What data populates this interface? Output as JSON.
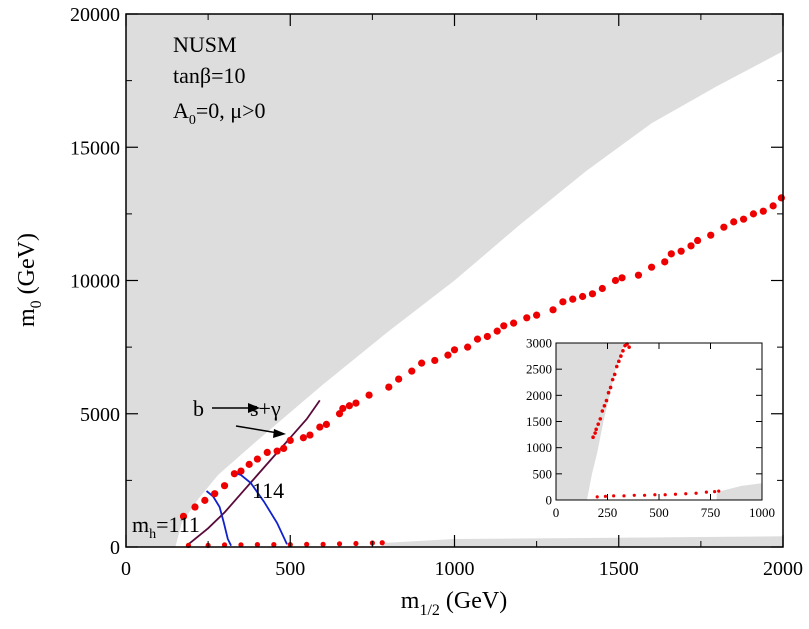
{
  "chart_data": {
    "type": "scatter",
    "colors": {
      "excluded_region": "#dddddd",
      "points": "#ee0000",
      "bsgamma_curve": "#5a0a3a",
      "higgs_contours": "#1122cc",
      "axes": "#000000"
    },
    "xlabel": {
      "main": "m",
      "sub": "1/2",
      "unit": " (GeV)"
    },
    "ylabel": {
      "main": "m",
      "sub": "0",
      "unit": " (GeV)"
    },
    "xlim": [
      0,
      2000
    ],
    "ylim": [
      0,
      20000
    ],
    "xticks": [
      0,
      500,
      1000,
      1500,
      2000
    ],
    "yticks": [
      0,
      5000,
      10000,
      15000,
      20000
    ],
    "xtick_labels": [
      "0",
      "500",
      "1000",
      "1500",
      "2000"
    ],
    "ytick_labels": [
      "0",
      "5000",
      "10000",
      "15000",
      "20000"
    ],
    "annotations": {
      "model": "NUSM",
      "tanb": "tanβ=10",
      "a0_main": "A",
      "a0_sub": "0",
      "a0_rest": "=0, μ>0",
      "bsg_b": "b",
      "bsg_rest": "s+γ",
      "mh_main": "m",
      "mh_sub": "h",
      "mh_value": "=111",
      "mh_114": "114"
    },
    "excluded_upper_left": [
      [
        0,
        20000
      ],
      [
        2000,
        20000
      ],
      [
        2000,
        18600
      ],
      [
        1800,
        17300
      ],
      [
        1600,
        15900
      ],
      [
        1400,
        14100
      ],
      [
        1200,
        12100
      ],
      [
        1000,
        10000
      ],
      [
        800,
        8100
      ],
      [
        600,
        6100
      ],
      [
        400,
        4000
      ],
      [
        280,
        2700
      ],
      [
        220,
        1800
      ],
      [
        170,
        900
      ],
      [
        150,
        0
      ],
      [
        0,
        0
      ]
    ],
    "excluded_lower": [
      [
        780,
        0
      ],
      [
        2000,
        0
      ],
      [
        2000,
        400
      ],
      [
        1800,
        380
      ],
      [
        1500,
        350
      ],
      [
        1200,
        320
      ],
      [
        1000,
        300
      ],
      [
        780,
        150
      ]
    ],
    "upper_branch": [
      [
        175,
        1150
      ],
      [
        210,
        1500
      ],
      [
        240,
        1750
      ],
      [
        270,
        2000
      ],
      [
        300,
        2300
      ],
      [
        330,
        2750
      ],
      [
        350,
        2850
      ],
      [
        375,
        3100
      ],
      [
        400,
        3300
      ],
      [
        430,
        3550
      ],
      [
        460,
        3600
      ],
      [
        480,
        3700
      ],
      [
        500,
        4000
      ],
      [
        540,
        4100
      ],
      [
        560,
        4200
      ],
      [
        590,
        4500
      ],
      [
        610,
        4600
      ],
      [
        650,
        5000
      ],
      [
        660,
        5200
      ],
      [
        680,
        5300
      ],
      [
        700,
        5400
      ],
      [
        740,
        5700
      ],
      [
        800,
        6000
      ],
      [
        830,
        6300
      ],
      [
        870,
        6600
      ],
      [
        900,
        6900
      ],
      [
        940,
        7000
      ],
      [
        980,
        7200
      ],
      [
        1000,
        7400
      ],
      [
        1040,
        7500
      ],
      [
        1070,
        7800
      ],
      [
        1100,
        7900
      ],
      [
        1130,
        8100
      ],
      [
        1150,
        8300
      ],
      [
        1180,
        8400
      ],
      [
        1220,
        8600
      ],
      [
        1250,
        8700
      ],
      [
        1300,
        8900
      ],
      [
        1330,
        9200
      ],
      [
        1360,
        9300
      ],
      [
        1390,
        9400
      ],
      [
        1420,
        9500
      ],
      [
        1450,
        9700
      ],
      [
        1490,
        10000
      ],
      [
        1510,
        10100
      ],
      [
        1560,
        10200
      ],
      [
        1600,
        10500
      ],
      [
        1640,
        10700
      ],
      [
        1660,
        11000
      ],
      [
        1690,
        11100
      ],
      [
        1720,
        11300
      ],
      [
        1740,
        11500
      ],
      [
        1780,
        11700
      ],
      [
        1820,
        12000
      ],
      [
        1850,
        12200
      ],
      [
        1880,
        12300
      ],
      [
        1910,
        12500
      ],
      [
        1940,
        12600
      ],
      [
        1970,
        12800
      ],
      [
        1995,
        13100
      ]
    ],
    "lower_branch": [
      [
        190,
        60
      ],
      [
        250,
        60
      ],
      [
        300,
        80
      ],
      [
        350,
        80
      ],
      [
        400,
        90
      ],
      [
        450,
        90
      ],
      [
        500,
        90
      ],
      [
        550,
        100
      ],
      [
        600,
        100
      ],
      [
        650,
        120
      ],
      [
        700,
        130
      ],
      [
        750,
        150
      ],
      [
        780,
        160
      ]
    ],
    "bsgamma_curve": [
      [
        190,
        100
      ],
      [
        250,
        700
      ],
      [
        300,
        1300
      ],
      [
        350,
        2000
      ],
      [
        400,
        2700
      ],
      [
        450,
        3400
      ],
      [
        500,
        4100
      ],
      [
        550,
        4800
      ],
      [
        590,
        5500
      ]
    ],
    "mh111_curve": [
      [
        245,
        2100
      ],
      [
        265,
        1900
      ],
      [
        285,
        1500
      ],
      [
        298,
        900
      ],
      [
        310,
        300
      ],
      [
        320,
        50
      ]
    ],
    "mh114_curve": [
      [
        330,
        2800
      ],
      [
        350,
        2700
      ],
      [
        380,
        2400
      ],
      [
        420,
        1700
      ],
      [
        460,
        900
      ],
      [
        490,
        100
      ]
    ],
    "inset": {
      "xlim": [
        0,
        1000
      ],
      "ylim": [
        0,
        3000
      ],
      "xticks": [
        0,
        250,
        500,
        750,
        1000
      ],
      "yticks": [
        0,
        500,
        1000,
        1500,
        2000,
        2500,
        3000
      ],
      "xtick_labels": [
        "0",
        "250",
        "500",
        "750",
        "1000"
      ],
      "ytick_labels": [
        "0",
        "500",
        "1000",
        "1500",
        "2000",
        "2500",
        "3000"
      ],
      "excluded_left": [
        [
          0,
          3000
        ],
        [
          330,
          3000
        ],
        [
          310,
          2700
        ],
        [
          290,
          2500
        ],
        [
          260,
          2000
        ],
        [
          230,
          1500
        ],
        [
          200,
          900
        ],
        [
          175,
          500
        ],
        [
          160,
          200
        ],
        [
          150,
          0
        ],
        [
          0,
          0
        ]
      ],
      "excluded_lower": [
        [
          780,
          0
        ],
        [
          1000,
          0
        ],
        [
          1000,
          320
        ],
        [
          900,
          270
        ],
        [
          800,
          170
        ],
        [
          780,
          120
        ]
      ],
      "upper_points": [
        [
          180,
          1200
        ],
        [
          190,
          1280
        ],
        [
          195,
          1350
        ],
        [
          205,
          1450
        ],
        [
          215,
          1550
        ],
        [
          225,
          1700
        ],
        [
          235,
          1800
        ],
        [
          245,
          1900
        ],
        [
          255,
          2050
        ],
        [
          265,
          2150
        ],
        [
          275,
          2300
        ],
        [
          285,
          2400
        ],
        [
          295,
          2550
        ],
        [
          305,
          2650
        ],
        [
          315,
          2750
        ],
        [
          325,
          2850
        ],
        [
          335,
          2950
        ],
        [
          345,
          2980
        ],
        [
          355,
          2920
        ]
      ],
      "lower_points": [
        [
          200,
          60
        ],
        [
          240,
          70
        ],
        [
          280,
          80
        ],
        [
          330,
          80
        ],
        [
          380,
          90
        ],
        [
          430,
          90
        ],
        [
          480,
          100
        ],
        [
          530,
          100
        ],
        [
          580,
          110
        ],
        [
          630,
          120
        ],
        [
          680,
          130
        ],
        [
          730,
          150
        ],
        [
          770,
          160
        ],
        [
          790,
          170
        ]
      ]
    }
  }
}
